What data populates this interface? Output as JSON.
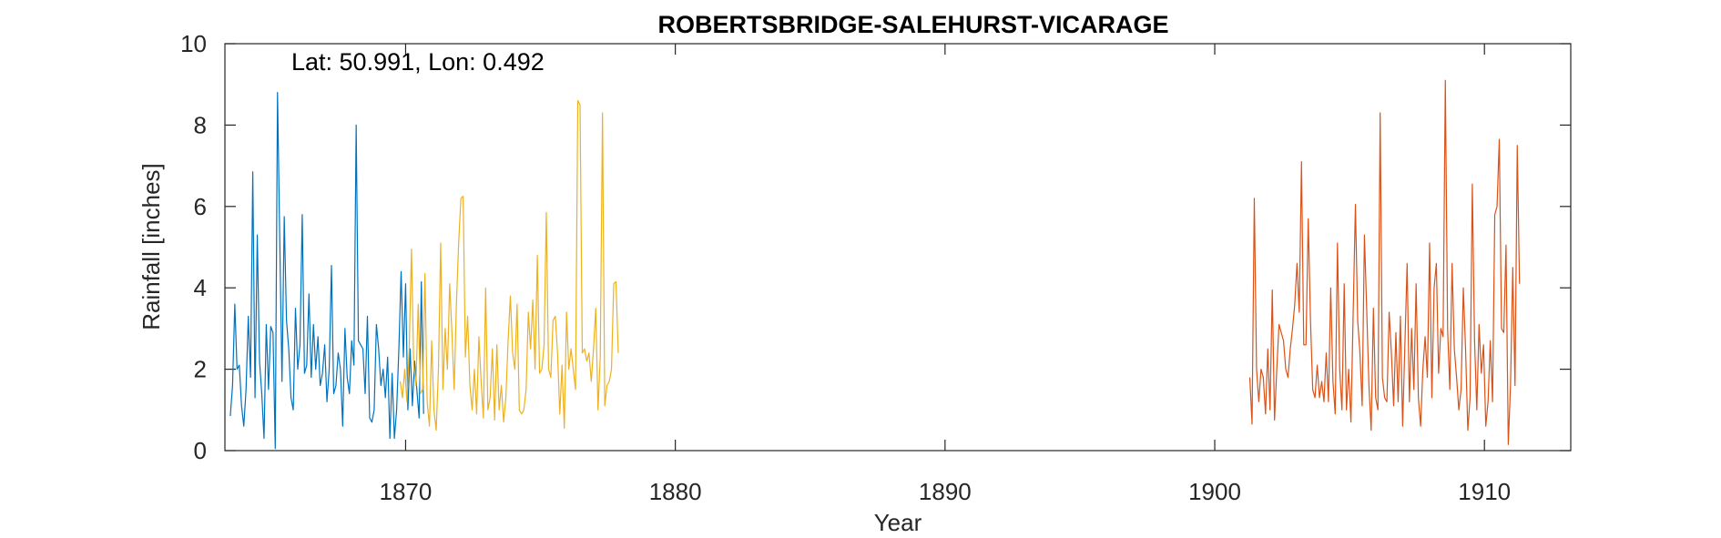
{
  "chart_data": {
    "type": "line",
    "title": "ROBERTSBRIDGE-SALEHURST-VICARAGE",
    "xlabel": "Year",
    "ylabel": "Rainfall [inches]",
    "annotation": "Lat: 50.991, Lon: 0.492",
    "xlim": [
      1863.3,
      1913.2
    ],
    "ylim": [
      0,
      10
    ],
    "xticks": [
      1870,
      1880,
      1890,
      1900,
      1910
    ],
    "yticks": [
      0,
      2,
      4,
      6,
      8,
      10
    ],
    "grid": false,
    "series": [
      {
        "color": "#0072BD",
        "x_start": 1863.5,
        "x_step": 0.083333,
        "values": [
          0.85,
          1.6,
          3.6,
          2.0,
          2.1,
          1.1,
          0.6,
          1.5,
          3.3,
          1.8,
          6.85,
          1.3,
          5.3,
          2.2,
          1.4,
          0.3,
          3.1,
          1.5,
          3.05,
          2.9,
          0.05,
          8.8,
          5.2,
          1.7,
          5.75,
          3.2,
          2.5,
          1.3,
          1.0,
          3.5,
          2.0,
          2.6,
          5.8,
          1.9,
          2.1,
          3.85,
          1.8,
          3.1,
          2.0,
          2.8,
          1.6,
          1.9,
          2.6,
          1.2,
          2.0,
          4.55,
          1.4,
          1.6,
          2.4,
          2.0,
          0.6,
          3.0,
          1.8,
          1.4,
          2.7,
          2.1,
          8.0,
          2.7,
          2.6,
          2.5,
          1.4,
          3.3,
          0.8,
          0.7,
          1.0,
          3.1,
          2.5,
          1.6,
          2.0,
          1.3,
          2.3,
          0.3,
          1.9,
          0.3,
          1.0,
          2.5,
          4.4,
          2.3,
          4.1,
          1.0,
          2.5,
          1.1,
          2.2,
          1.5,
          0.8,
          4.15,
          0.9
        ]
      },
      {
        "color": "#EDB120",
        "x_start": 1869.8,
        "x_step": 0.083333,
        "values": [
          1.7,
          1.3,
          2.0,
          1.2,
          2.5,
          4.95,
          2.1,
          1.6,
          3.6,
          1.4,
          1.5,
          4.35,
          1.2,
          0.6,
          2.7,
          1.0,
          0.5,
          2.0,
          5.1,
          1.5,
          3.0,
          2.0,
          4.1,
          2.9,
          1.5,
          3.6,
          5.1,
          6.2,
          6.25,
          2.3,
          3.3,
          1.6,
          1.0,
          2.0,
          0.9,
          2.8,
          1.7,
          0.8,
          4.0,
          1.0,
          1.3,
          2.5,
          0.75,
          2.6,
          1.0,
          1.6,
          0.7,
          1.3,
          2.7,
          3.8,
          2.4,
          2.0,
          3.6,
          1.0,
          0.9,
          1.0,
          1.5,
          3.4,
          2.5,
          3.7,
          2.0,
          4.8,
          1.9,
          2.0,
          2.6,
          5.85,
          2.0,
          1.8,
          3.2,
          3.3,
          2.4,
          0.9,
          2.1,
          0.55,
          3.4,
          2.0,
          2.5,
          2.0,
          1.5,
          8.6,
          8.5,
          2.4,
          2.5,
          2.2,
          2.4,
          1.7,
          2.5,
          3.5,
          1.0,
          2.3,
          8.3,
          1.1,
          1.6,
          1.7,
          2.0,
          4.1,
          4.15,
          2.4
        ]
      },
      {
        "color": "#D95319",
        "x_start": 1901.3,
        "x_step": 0.083333,
        "values": [
          1.8,
          0.65,
          6.2,
          2.0,
          1.2,
          2.0,
          1.8,
          0.9,
          2.5,
          1.0,
          3.95,
          0.75,
          2.0,
          3.1,
          2.9,
          2.7,
          2.0,
          1.8,
          2.5,
          3.0,
          3.6,
          4.6,
          3.4,
          7.1,
          2.6,
          2.6,
          5.7,
          3.2,
          1.5,
          1.3,
          2.1,
          1.3,
          1.7,
          1.2,
          2.4,
          1.2,
          4.0,
          1.7,
          0.9,
          5.1,
          2.0,
          1.0,
          4.1,
          1.0,
          2.0,
          0.7,
          3.4,
          6.05,
          3.2,
          2.4,
          1.1,
          5.3,
          3.5,
          1.6,
          0.5,
          3.5,
          1.3,
          1.0,
          8.3,
          1.8,
          1.3,
          1.2,
          3.4,
          2.4,
          1.1,
          2.9,
          1.2,
          3.3,
          0.6,
          2.6,
          4.6,
          1.2,
          3.0,
          1.5,
          4.1,
          1.3,
          0.6,
          2.0,
          2.8,
          1.8,
          5.1,
          1.3,
          4.0,
          4.6,
          1.9,
          3.0,
          2.8,
          9.1,
          3.0,
          1.5,
          4.6,
          2.5,
          1.8,
          1.0,
          1.5,
          4.0,
          2.5,
          0.5,
          1.3,
          6.55,
          2.7,
          1.0,
          3.1,
          1.9,
          2.6,
          0.6,
          1.2,
          2.7,
          1.2,
          5.8,
          6.0,
          7.65,
          3.0,
          2.9,
          5.05,
          0.15,
          1.6,
          4.5,
          1.6,
          7.5,
          4.1
        ]
      }
    ]
  }
}
